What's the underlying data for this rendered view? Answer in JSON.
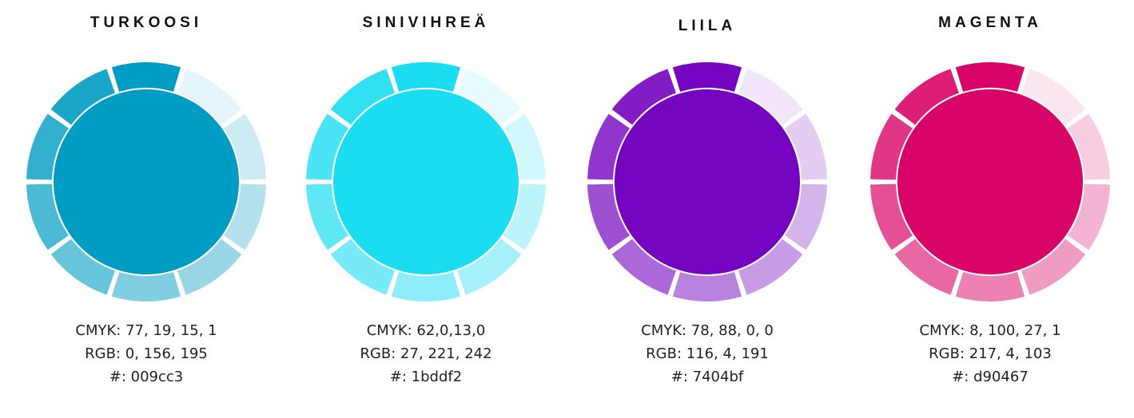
{
  "swatches": [
    {
      "title": "TURKOOSI",
      "cmyk": "CMYK: 77, 19, 15, 1",
      "rgb": "RGB: 0, 156, 195",
      "hex_label": "#: 009cc3",
      "color": "#009cc3"
    },
    {
      "title": "SINIVIHREÄ",
      "cmyk": "CMYK: 62,0,13,0",
      "rgb": "RGB: 27, 221, 242",
      "hex_label": "#: 1bddf2",
      "color": "#1bddf2"
    },
    {
      "title": "LIILA",
      "cmyk": "CMYK: 78, 88, 0, 0",
      "rgb": "RGB: 116, 4, 191",
      "hex_label": "#: 7404bf",
      "color": "#7404bf"
    },
    {
      "title": "MAGENTA",
      "cmyk": "CMYK: 8, 100, 27, 1",
      "rgb": "RGB: 217, 4, 103",
      "hex_label": "#: d90467",
      "color": "#d90467"
    }
  ],
  "tint_steps": [
    1.0,
    0.1,
    0.2,
    0.3,
    0.4,
    0.5,
    0.6,
    0.7,
    0.8,
    0.9
  ],
  "background": "#ffffff"
}
